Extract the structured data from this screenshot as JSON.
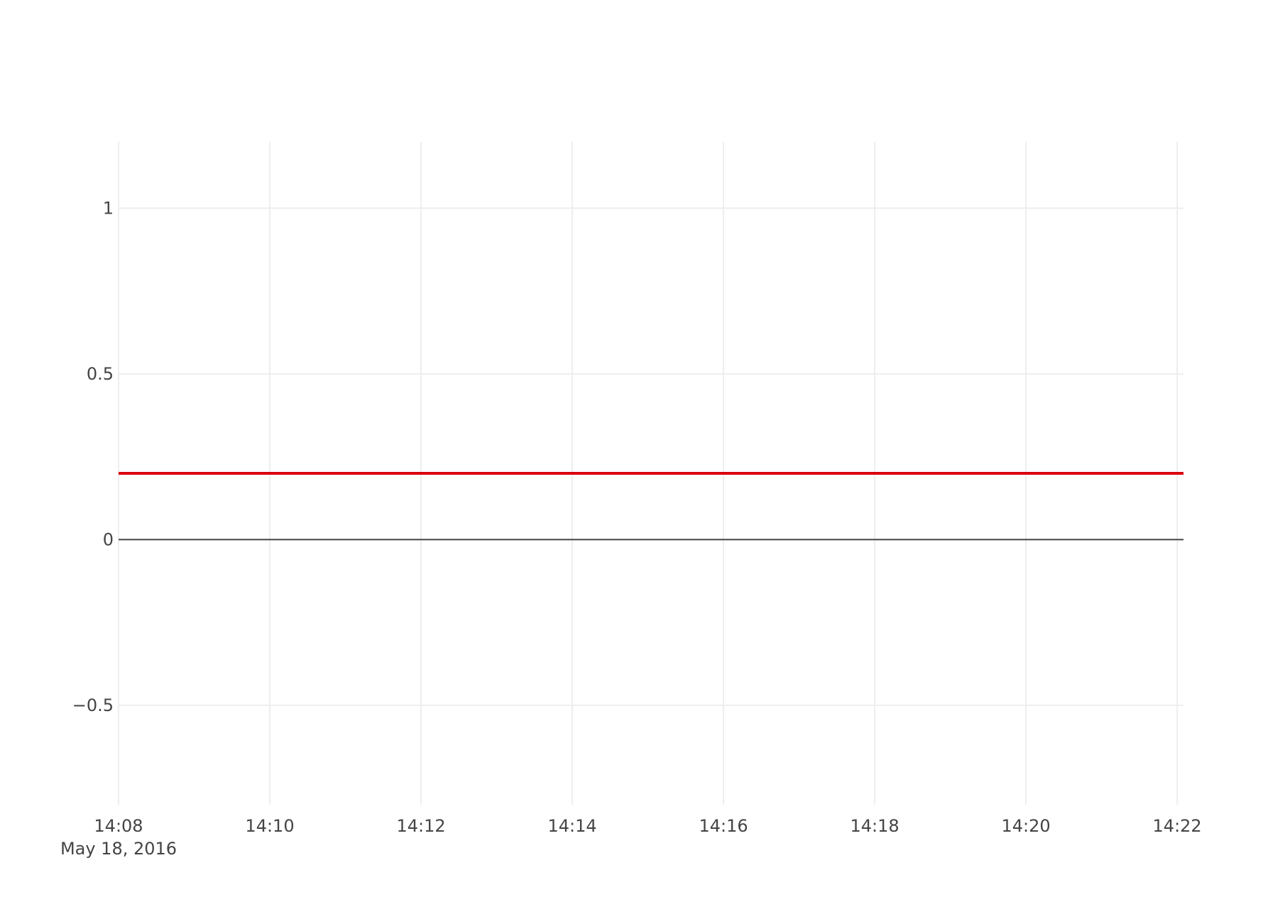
{
  "chart_data": {
    "type": "line",
    "title": "",
    "xlabel": "",
    "ylabel": "",
    "x_ticks": [
      {
        "value": "2016-05-18 14:08",
        "label": "14:08"
      },
      {
        "value": "2016-05-18 14:10",
        "label": "14:10"
      },
      {
        "value": "2016-05-18 14:12",
        "label": "14:12"
      },
      {
        "value": "2016-05-18 14:14",
        "label": "14:14"
      },
      {
        "value": "2016-05-18 14:16",
        "label": "14:16"
      },
      {
        "value": "2016-05-18 14:18",
        "label": "14:18"
      },
      {
        "value": "2016-05-18 14:20",
        "label": "14:20"
      },
      {
        "value": "2016-05-18 14:22",
        "label": "14:22"
      }
    ],
    "x_date_label": "May 18, 2016",
    "y_ticks": [
      {
        "value": 1,
        "label": "1"
      },
      {
        "value": 0.5,
        "label": "0.5"
      },
      {
        "value": 0,
        "label": "0"
      },
      {
        "value": -0.5,
        "label": "−0.5"
      }
    ],
    "xlim": [
      "2016-05-18 14:08",
      "2016-05-18 14:22:05"
    ],
    "ylim": [
      -0.8,
      1.2
    ],
    "grid": true,
    "zero_line": true,
    "series": [
      {
        "color": "#d9000d",
        "x": [
          "2016-05-18 14:08",
          "2016-05-18 14:22:05"
        ],
        "y": [
          0.2,
          0.2
        ]
      }
    ],
    "colors": {
      "grid": "#eeeeee",
      "zero_line": "#444444",
      "series": "#d9000d",
      "text": "#444444"
    }
  }
}
